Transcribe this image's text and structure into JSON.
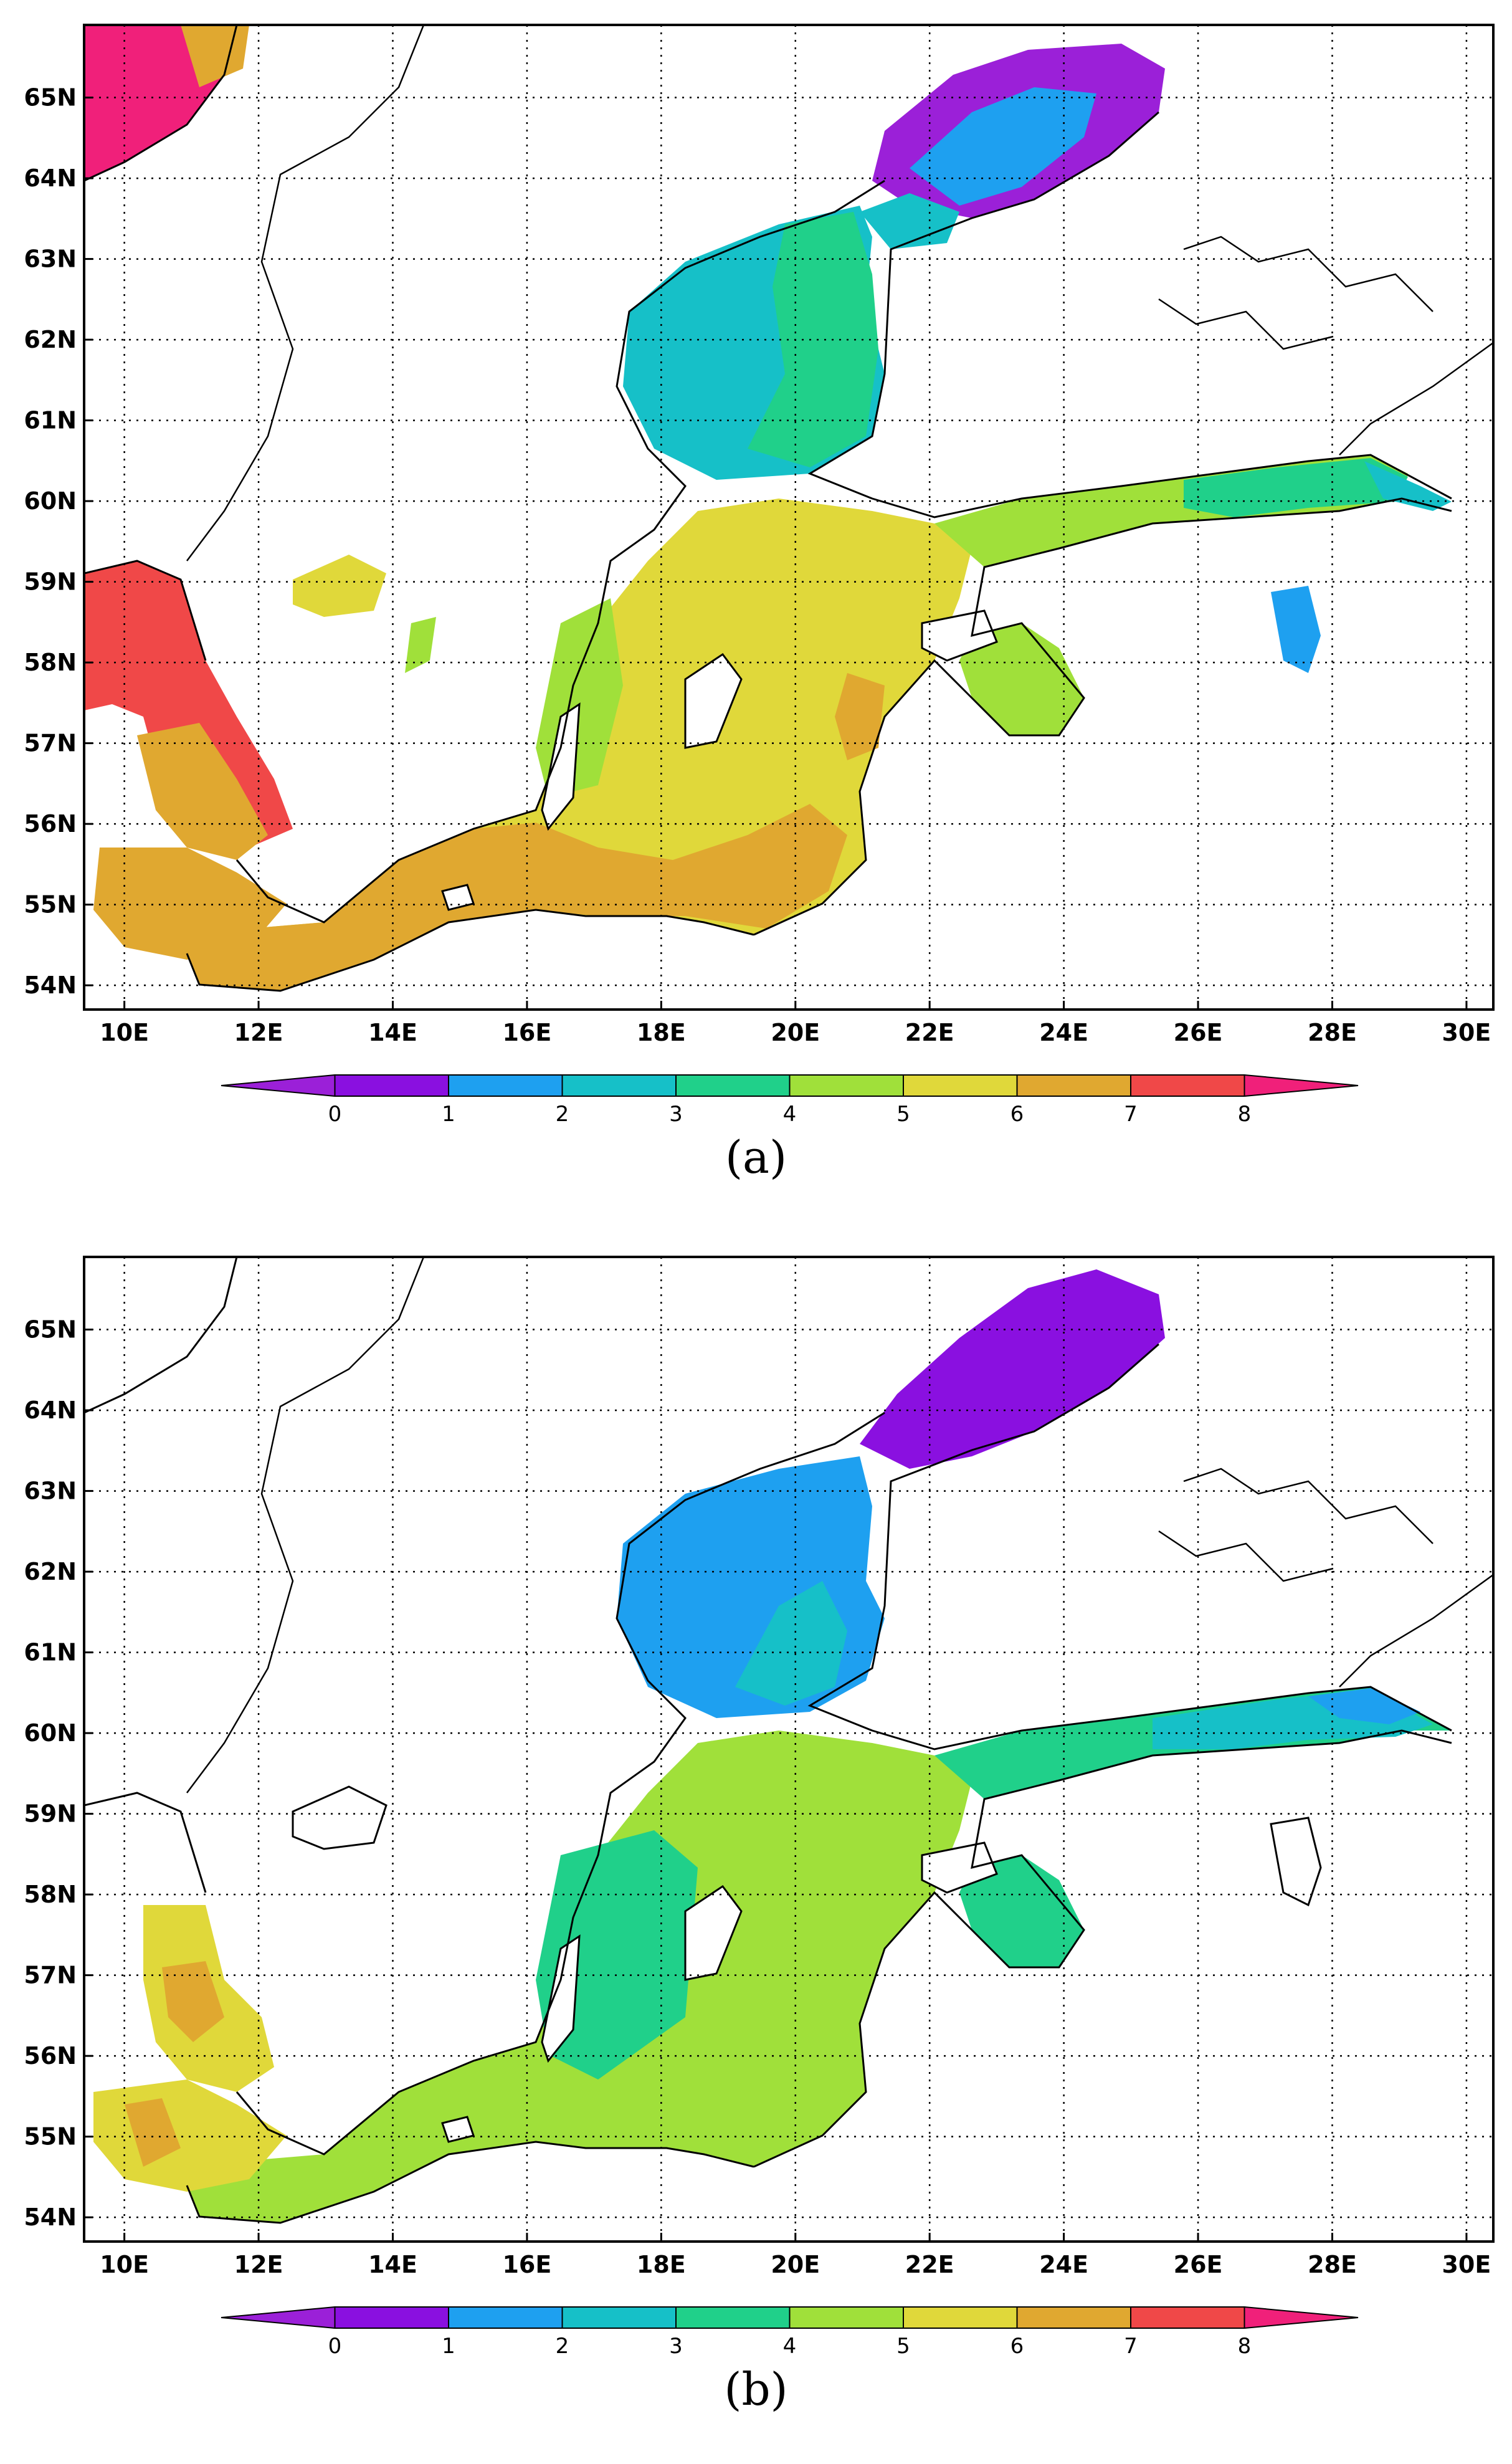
{
  "panels": [
    {
      "id": "a",
      "caption": "(a)"
    },
    {
      "id": "b",
      "caption": "(b)"
    }
  ],
  "map": {
    "lat_labels": [
      "54N",
      "55N",
      "56N",
      "57N",
      "58N",
      "59N",
      "60N",
      "61N",
      "62N",
      "63N",
      "64N",
      "65N"
    ],
    "lat_values": [
      54,
      55,
      56,
      57,
      58,
      59,
      60,
      61,
      62,
      63,
      64,
      65
    ],
    "lon_labels": [
      "10E",
      "12E",
      "14E",
      "16E",
      "18E",
      "20E",
      "22E",
      "24E",
      "26E",
      "28E",
      "30E"
    ],
    "lon_values": [
      10,
      12,
      14,
      16,
      18,
      20,
      22,
      24,
      26,
      28,
      30
    ],
    "lon_range": [
      9.4,
      30.4
    ],
    "lat_range": [
      53.7,
      65.9
    ]
  },
  "colorbar": {
    "labels": [
      "0",
      "1",
      "2",
      "3",
      "4",
      "5",
      "6",
      "7",
      "8"
    ],
    "colors": [
      "#9b20d8",
      "#8a10e0",
      "#1ea0f0",
      "#16c0c8",
      "#20d08a",
      "#a0e03a",
      "#e0d83a",
      "#e0a830",
      "#f04848",
      "#f0207a"
    ]
  },
  "colors": {
    "land": "#ffffff",
    "coast": "#000000",
    "grid": "#000000"
  }
}
